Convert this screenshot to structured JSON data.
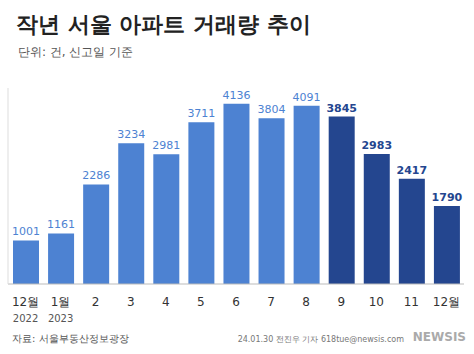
{
  "chart_data": {
    "type": "bar",
    "title": "작년 서울 아파트 거래량 추이",
    "subtitle": "단위: 건, 신고일 기준",
    "categories": [
      "12월",
      "1월",
      "2",
      "3",
      "4",
      "5",
      "6",
      "7",
      "8",
      "9",
      "10",
      "11",
      "12월"
    ],
    "x_sublabels": [
      "2022",
      "2023",
      null,
      null,
      null,
      null,
      null,
      null,
      null,
      null,
      null,
      null,
      null
    ],
    "values": [
      1001,
      1161,
      2286,
      3234,
      2981,
      3711,
      4136,
      3804,
      4091,
      3845,
      2983,
      2417,
      1790
    ],
    "colors": [
      "#4d82d2",
      "#4d82d2",
      "#4d82d2",
      "#4d82d2",
      "#4d82d2",
      "#4d82d2",
      "#4d82d2",
      "#4d82d2",
      "#4d82d2",
      "#24468f",
      "#24468f",
      "#24468f",
      "#24468f"
    ],
    "ylim": [
      0,
      4500
    ],
    "data_labels": true,
    "tick_labels": "x",
    "grid": false,
    "annotations": [
      "자료: 서울부동산정보광장",
      "24.01.30 전진우 기자 618tue@newsis.com",
      "NEWSIS"
    ]
  }
}
